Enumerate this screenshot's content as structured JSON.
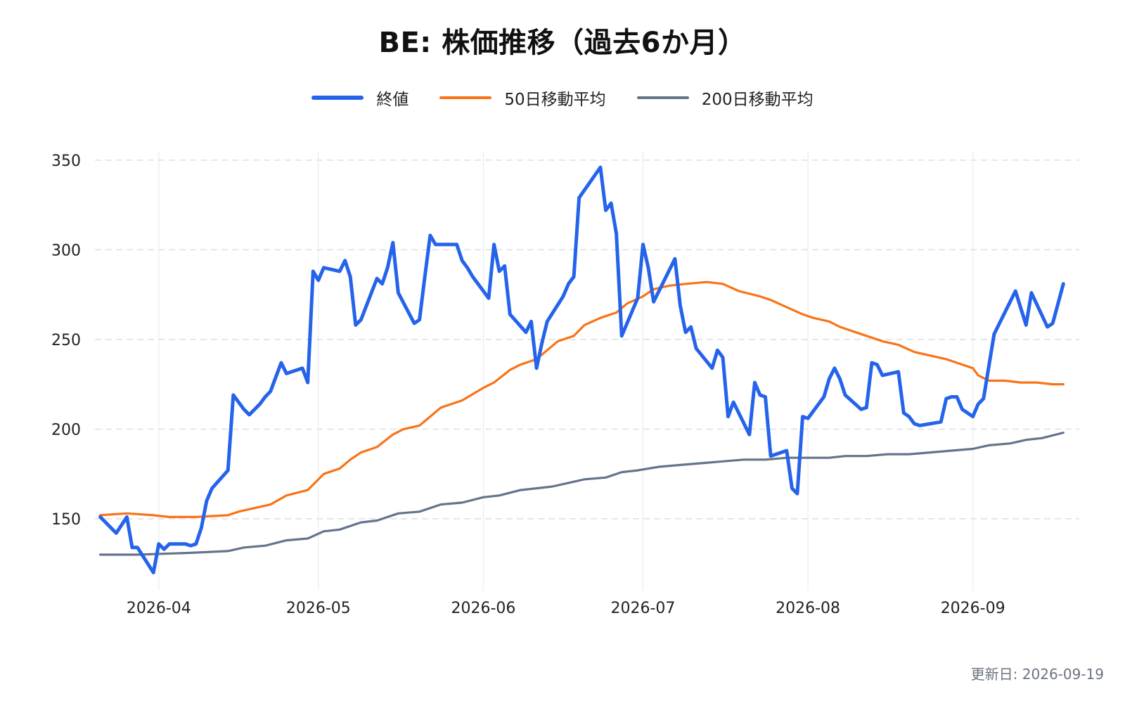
{
  "chart_data": {
    "type": "line",
    "title": "BE: 株価推移（過去6か月）",
    "xlabel": "",
    "ylabel": "",
    "ylim": [
      110,
      355
    ],
    "xlim": [
      "2026-03-20",
      "2026-09-21"
    ],
    "yticks": [
      150,
      200,
      250,
      300,
      350
    ],
    "xticks": [
      {
        "date": "2026-04-01",
        "label": "2026-04"
      },
      {
        "date": "2026-05-01",
        "label": "2026-05"
      },
      {
        "date": "2026-06-01",
        "label": "2026-06"
      },
      {
        "date": "2026-07-01",
        "label": "2026-07"
      },
      {
        "date": "2026-08-01",
        "label": "2026-08"
      },
      {
        "date": "2026-09-01",
        "label": "2026-09"
      }
    ],
    "grid": "horizontal dashed, vertical solid",
    "legend_position": "top-center",
    "series": [
      {
        "name": "終値",
        "color": "#2563eb",
        "points": [
          [
            "2026-03-21",
            151
          ],
          [
            "2026-03-24",
            142
          ],
          [
            "2026-03-26",
            151
          ],
          [
            "2026-03-27",
            134
          ],
          [
            "2026-03-28",
            134
          ],
          [
            "2026-03-31",
            120
          ],
          [
            "2026-04-01",
            136
          ],
          [
            "2026-04-02",
            133
          ],
          [
            "2026-04-03",
            136
          ],
          [
            "2026-04-06",
            136
          ],
          [
            "2026-04-07",
            135
          ],
          [
            "2026-04-08",
            136
          ],
          [
            "2026-04-09",
            145
          ],
          [
            "2026-04-10",
            160
          ],
          [
            "2026-04-11",
            167
          ],
          [
            "2026-04-14",
            177
          ],
          [
            "2026-04-15",
            219
          ],
          [
            "2026-04-17",
            211
          ],
          [
            "2026-04-18",
            208
          ],
          [
            "2026-04-20",
            214
          ],
          [
            "2026-04-21",
            218
          ],
          [
            "2026-04-22",
            221
          ],
          [
            "2026-04-24",
            237
          ],
          [
            "2026-04-25",
            231
          ],
          [
            "2026-04-28",
            234
          ],
          [
            "2026-04-29",
            226
          ],
          [
            "2026-04-30",
            288
          ],
          [
            "2026-05-01",
            283
          ],
          [
            "2026-05-02",
            290
          ],
          [
            "2026-05-05",
            288
          ],
          [
            "2026-05-06",
            294
          ],
          [
            "2026-05-07",
            285
          ],
          [
            "2026-05-08",
            258
          ],
          [
            "2026-05-09",
            261
          ],
          [
            "2026-05-12",
            284
          ],
          [
            "2026-05-13",
            281
          ],
          [
            "2026-05-14",
            290
          ],
          [
            "2026-05-15",
            304
          ],
          [
            "2026-05-16",
            276
          ],
          [
            "2026-05-19",
            259
          ],
          [
            "2026-05-20",
            261
          ],
          [
            "2026-05-21",
            285
          ],
          [
            "2026-05-22",
            308
          ],
          [
            "2026-05-23",
            303
          ],
          [
            "2026-05-27",
            303
          ],
          [
            "2026-05-28",
            294
          ],
          [
            "2026-05-29",
            290
          ],
          [
            "2026-05-30",
            285
          ],
          [
            "2026-06-02",
            273
          ],
          [
            "2026-06-03",
            303
          ],
          [
            "2026-06-04",
            288
          ],
          [
            "2026-06-05",
            291
          ],
          [
            "2026-06-06",
            264
          ],
          [
            "2026-06-09",
            254
          ],
          [
            "2026-06-10",
            260
          ],
          [
            "2026-06-11",
            234
          ],
          [
            "2026-06-12",
            248
          ],
          [
            "2026-06-13",
            260
          ],
          [
            "2026-06-16",
            274
          ],
          [
            "2026-06-17",
            281
          ],
          [
            "2026-06-18",
            285
          ],
          [
            "2026-06-19",
            329
          ],
          [
            "2026-06-23",
            346
          ],
          [
            "2026-06-24",
            322
          ],
          [
            "2026-06-25",
            326
          ],
          [
            "2026-06-26",
            309
          ],
          [
            "2026-06-27",
            252
          ],
          [
            "2026-06-30",
            273
          ],
          [
            "2026-07-01",
            303
          ],
          [
            "2026-07-02",
            290
          ],
          [
            "2026-07-03",
            271
          ],
          [
            "2026-07-07",
            295
          ],
          [
            "2026-07-08",
            269
          ],
          [
            "2026-07-09",
            254
          ],
          [
            "2026-07-10",
            257
          ],
          [
            "2026-07-11",
            245
          ],
          [
            "2026-07-14",
            234
          ],
          [
            "2026-07-15",
            244
          ],
          [
            "2026-07-16",
            240
          ],
          [
            "2026-07-17",
            207
          ],
          [
            "2026-07-18",
            215
          ],
          [
            "2026-07-21",
            197
          ],
          [
            "2026-07-22",
            226
          ],
          [
            "2026-07-23",
            219
          ],
          [
            "2026-07-24",
            218
          ],
          [
            "2026-07-25",
            185
          ],
          [
            "2026-07-28",
            188
          ],
          [
            "2026-07-29",
            167
          ],
          [
            "2026-07-30",
            164
          ],
          [
            "2026-07-31",
            207
          ],
          [
            "2026-08-01",
            206
          ],
          [
            "2026-08-04",
            218
          ],
          [
            "2026-08-05",
            228
          ],
          [
            "2026-08-06",
            234
          ],
          [
            "2026-08-07",
            228
          ],
          [
            "2026-08-08",
            219
          ],
          [
            "2026-08-11",
            211
          ],
          [
            "2026-08-12",
            212
          ],
          [
            "2026-08-13",
            237
          ],
          [
            "2026-08-14",
            236
          ],
          [
            "2026-08-15",
            230
          ],
          [
            "2026-08-18",
            232
          ],
          [
            "2026-08-19",
            209
          ],
          [
            "2026-08-20",
            207
          ],
          [
            "2026-08-21",
            203
          ],
          [
            "2026-08-22",
            202
          ],
          [
            "2026-08-26",
            204
          ],
          [
            "2026-08-27",
            217
          ],
          [
            "2026-08-28",
            218
          ],
          [
            "2026-08-29",
            218
          ],
          [
            "2026-08-30",
            211
          ],
          [
            "2026-09-01",
            207
          ],
          [
            "2026-09-02",
            214
          ],
          [
            "2026-09-03",
            217
          ],
          [
            "2026-09-05",
            253
          ],
          [
            "2026-09-09",
            277
          ],
          [
            "2026-09-11",
            258
          ],
          [
            "2026-09-12",
            276
          ],
          [
            "2026-09-15",
            257
          ],
          [
            "2026-09-16",
            259
          ],
          [
            "2026-09-18",
            281
          ]
        ]
      },
      {
        "name": "50日移動平均",
        "color": "#f97316",
        "points": [
          [
            "2026-03-21",
            152
          ],
          [
            "2026-03-26",
            153
          ],
          [
            "2026-03-31",
            152
          ],
          [
            "2026-04-03",
            151
          ],
          [
            "2026-04-08",
            151
          ],
          [
            "2026-04-14",
            152
          ],
          [
            "2026-04-16",
            154
          ],
          [
            "2026-04-19",
            156
          ],
          [
            "2026-04-22",
            158
          ],
          [
            "2026-04-25",
            163
          ],
          [
            "2026-04-29",
            166
          ],
          [
            "2026-05-02",
            175
          ],
          [
            "2026-05-05",
            178
          ],
          [
            "2026-05-07",
            183
          ],
          [
            "2026-05-09",
            187
          ],
          [
            "2026-05-12",
            190
          ],
          [
            "2026-05-15",
            197
          ],
          [
            "2026-05-17",
            200
          ],
          [
            "2026-05-20",
            202
          ],
          [
            "2026-05-22",
            207
          ],
          [
            "2026-05-24",
            212
          ],
          [
            "2026-05-28",
            216
          ],
          [
            "2026-06-01",
            223
          ],
          [
            "2026-06-03",
            226
          ],
          [
            "2026-06-06",
            233
          ],
          [
            "2026-06-08",
            236
          ],
          [
            "2026-06-11",
            239
          ],
          [
            "2026-06-13",
            244
          ],
          [
            "2026-06-15",
            249
          ],
          [
            "2026-06-18",
            252
          ],
          [
            "2026-06-20",
            258
          ],
          [
            "2026-06-23",
            262
          ],
          [
            "2026-06-26",
            265
          ],
          [
            "2026-06-28",
            270
          ],
          [
            "2026-07-01",
            274
          ],
          [
            "2026-07-03",
            278
          ],
          [
            "2026-07-06",
            280
          ],
          [
            "2026-07-09",
            281
          ],
          [
            "2026-07-13",
            282
          ],
          [
            "2026-07-16",
            281
          ],
          [
            "2026-07-19",
            277
          ],
          [
            "2026-07-23",
            274
          ],
          [
            "2026-07-25",
            272
          ],
          [
            "2026-07-28",
            268
          ],
          [
            "2026-07-31",
            264
          ],
          [
            "2026-08-02",
            262
          ],
          [
            "2026-08-05",
            260
          ],
          [
            "2026-08-07",
            257
          ],
          [
            "2026-08-10",
            254
          ],
          [
            "2026-08-13",
            251
          ],
          [
            "2026-08-15",
            249
          ],
          [
            "2026-08-18",
            247
          ],
          [
            "2026-08-21",
            243
          ],
          [
            "2026-08-24",
            241
          ],
          [
            "2026-08-27",
            239
          ],
          [
            "2026-08-30",
            236
          ],
          [
            "2026-09-01",
            234
          ],
          [
            "2026-09-02",
            230
          ],
          [
            "2026-09-04",
            227
          ],
          [
            "2026-09-07",
            227
          ],
          [
            "2026-09-10",
            226
          ],
          [
            "2026-09-13",
            226
          ],
          [
            "2026-09-16",
            225
          ],
          [
            "2026-09-18",
            225
          ]
        ]
      },
      {
        "name": "200日移動平均",
        "color": "#64748b",
        "points": [
          [
            "2026-03-21",
            130
          ],
          [
            "2026-03-28",
            130
          ],
          [
            "2026-04-07",
            131
          ],
          [
            "2026-04-14",
            132
          ],
          [
            "2026-04-17",
            134
          ],
          [
            "2026-04-21",
            135
          ],
          [
            "2026-04-25",
            138
          ],
          [
            "2026-04-29",
            139
          ],
          [
            "2026-05-02",
            143
          ],
          [
            "2026-05-05",
            144
          ],
          [
            "2026-05-09",
            148
          ],
          [
            "2026-05-12",
            149
          ],
          [
            "2026-05-16",
            153
          ],
          [
            "2026-05-20",
            154
          ],
          [
            "2026-05-24",
            158
          ],
          [
            "2026-05-28",
            159
          ],
          [
            "2026-06-01",
            162
          ],
          [
            "2026-06-04",
            163
          ],
          [
            "2026-06-08",
            166
          ],
          [
            "2026-06-11",
            167
          ],
          [
            "2026-06-14",
            168
          ],
          [
            "2026-06-17",
            170
          ],
          [
            "2026-06-20",
            172
          ],
          [
            "2026-06-24",
            173
          ],
          [
            "2026-06-27",
            176
          ],
          [
            "2026-06-30",
            177
          ],
          [
            "2026-07-04",
            179
          ],
          [
            "2026-07-08",
            180
          ],
          [
            "2026-07-12",
            181
          ],
          [
            "2026-07-16",
            182
          ],
          [
            "2026-07-20",
            183
          ],
          [
            "2026-07-24",
            183
          ],
          [
            "2026-07-28",
            184
          ],
          [
            "2026-08-01",
            184
          ],
          [
            "2026-08-05",
            184
          ],
          [
            "2026-08-08",
            185
          ],
          [
            "2026-08-12",
            185
          ],
          [
            "2026-08-16",
            186
          ],
          [
            "2026-08-20",
            186
          ],
          [
            "2026-08-24",
            187
          ],
          [
            "2026-08-28",
            188
          ],
          [
            "2026-09-01",
            189
          ],
          [
            "2026-09-04",
            191
          ],
          [
            "2026-09-08",
            192
          ],
          [
            "2026-09-11",
            194
          ],
          [
            "2026-09-14",
            195
          ],
          [
            "2026-09-18",
            198
          ]
        ]
      }
    ]
  },
  "updated_text": "更新日: 2026-09-19"
}
